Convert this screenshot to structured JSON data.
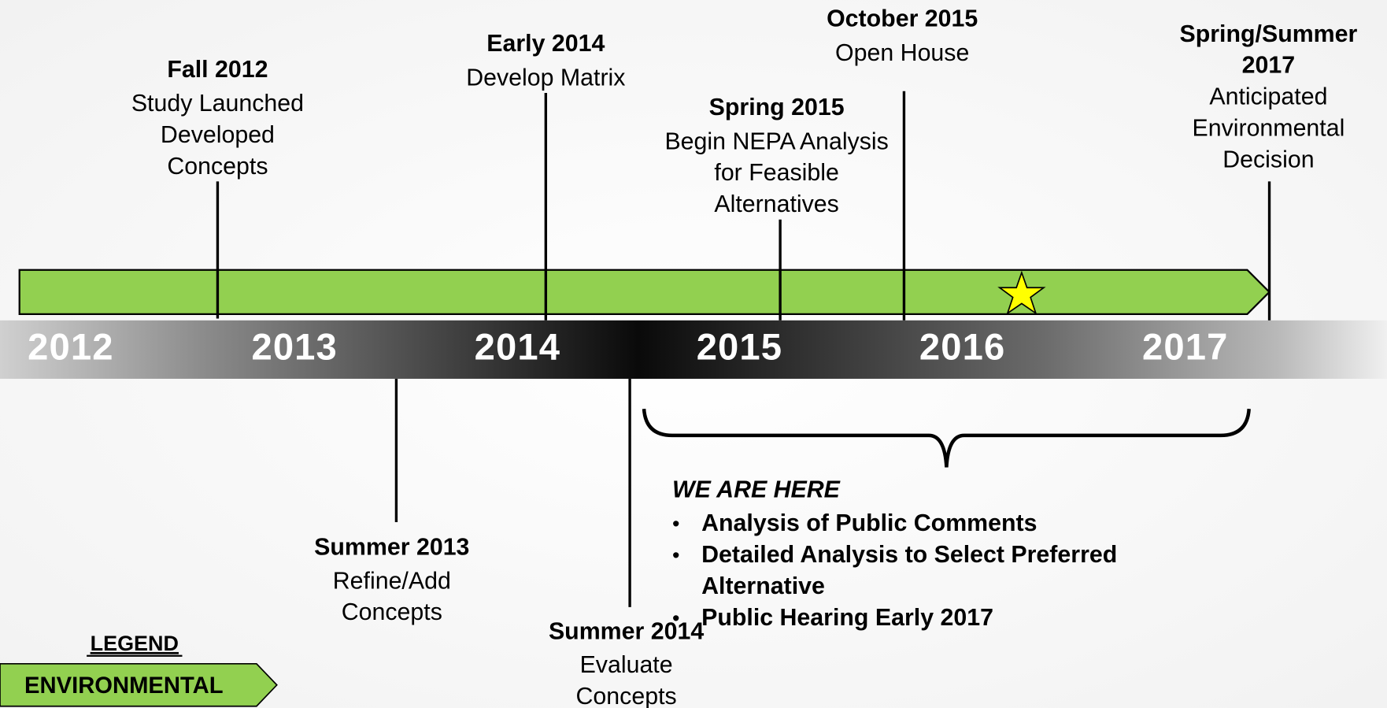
{
  "years": [
    "2012",
    "2013",
    "2014",
    "2015",
    "2016",
    "2017"
  ],
  "milestones_above": [
    {
      "title": "Fall 2012",
      "lines": [
        "Study Launched",
        "Developed",
        "Concepts"
      ]
    },
    {
      "title": "Early 2014",
      "lines": [
        "Develop Matrix"
      ]
    },
    {
      "title": "Spring 2015",
      "lines": [
        "Begin NEPA Analysis",
        "for Feasible",
        "Alternatives"
      ]
    },
    {
      "title": "October 2015",
      "lines": [
        "Open House"
      ]
    },
    {
      "title_lines": [
        "Spring/Summer",
        "2017"
      ],
      "lines": [
        "Anticipated",
        "Environmental",
        "Decision"
      ]
    }
  ],
  "milestones_below": [
    {
      "title": "Summer 2013",
      "lines": [
        "Refine/Add",
        "Concepts"
      ]
    },
    {
      "title": "Summer 2014",
      "lines": [
        "Evaluate",
        "Concepts"
      ]
    }
  ],
  "we_are_here": {
    "heading": "WE ARE HERE",
    "bullets": [
      [
        "Analysis of Public Comments"
      ],
      [
        "Detailed Analysis to Select Preferred",
        "Alternative"
      ],
      [
        "Public Hearing Early 2017"
      ]
    ]
  },
  "legend": {
    "title": "LEGEND",
    "item": "ENVIRONMENTAL"
  }
}
